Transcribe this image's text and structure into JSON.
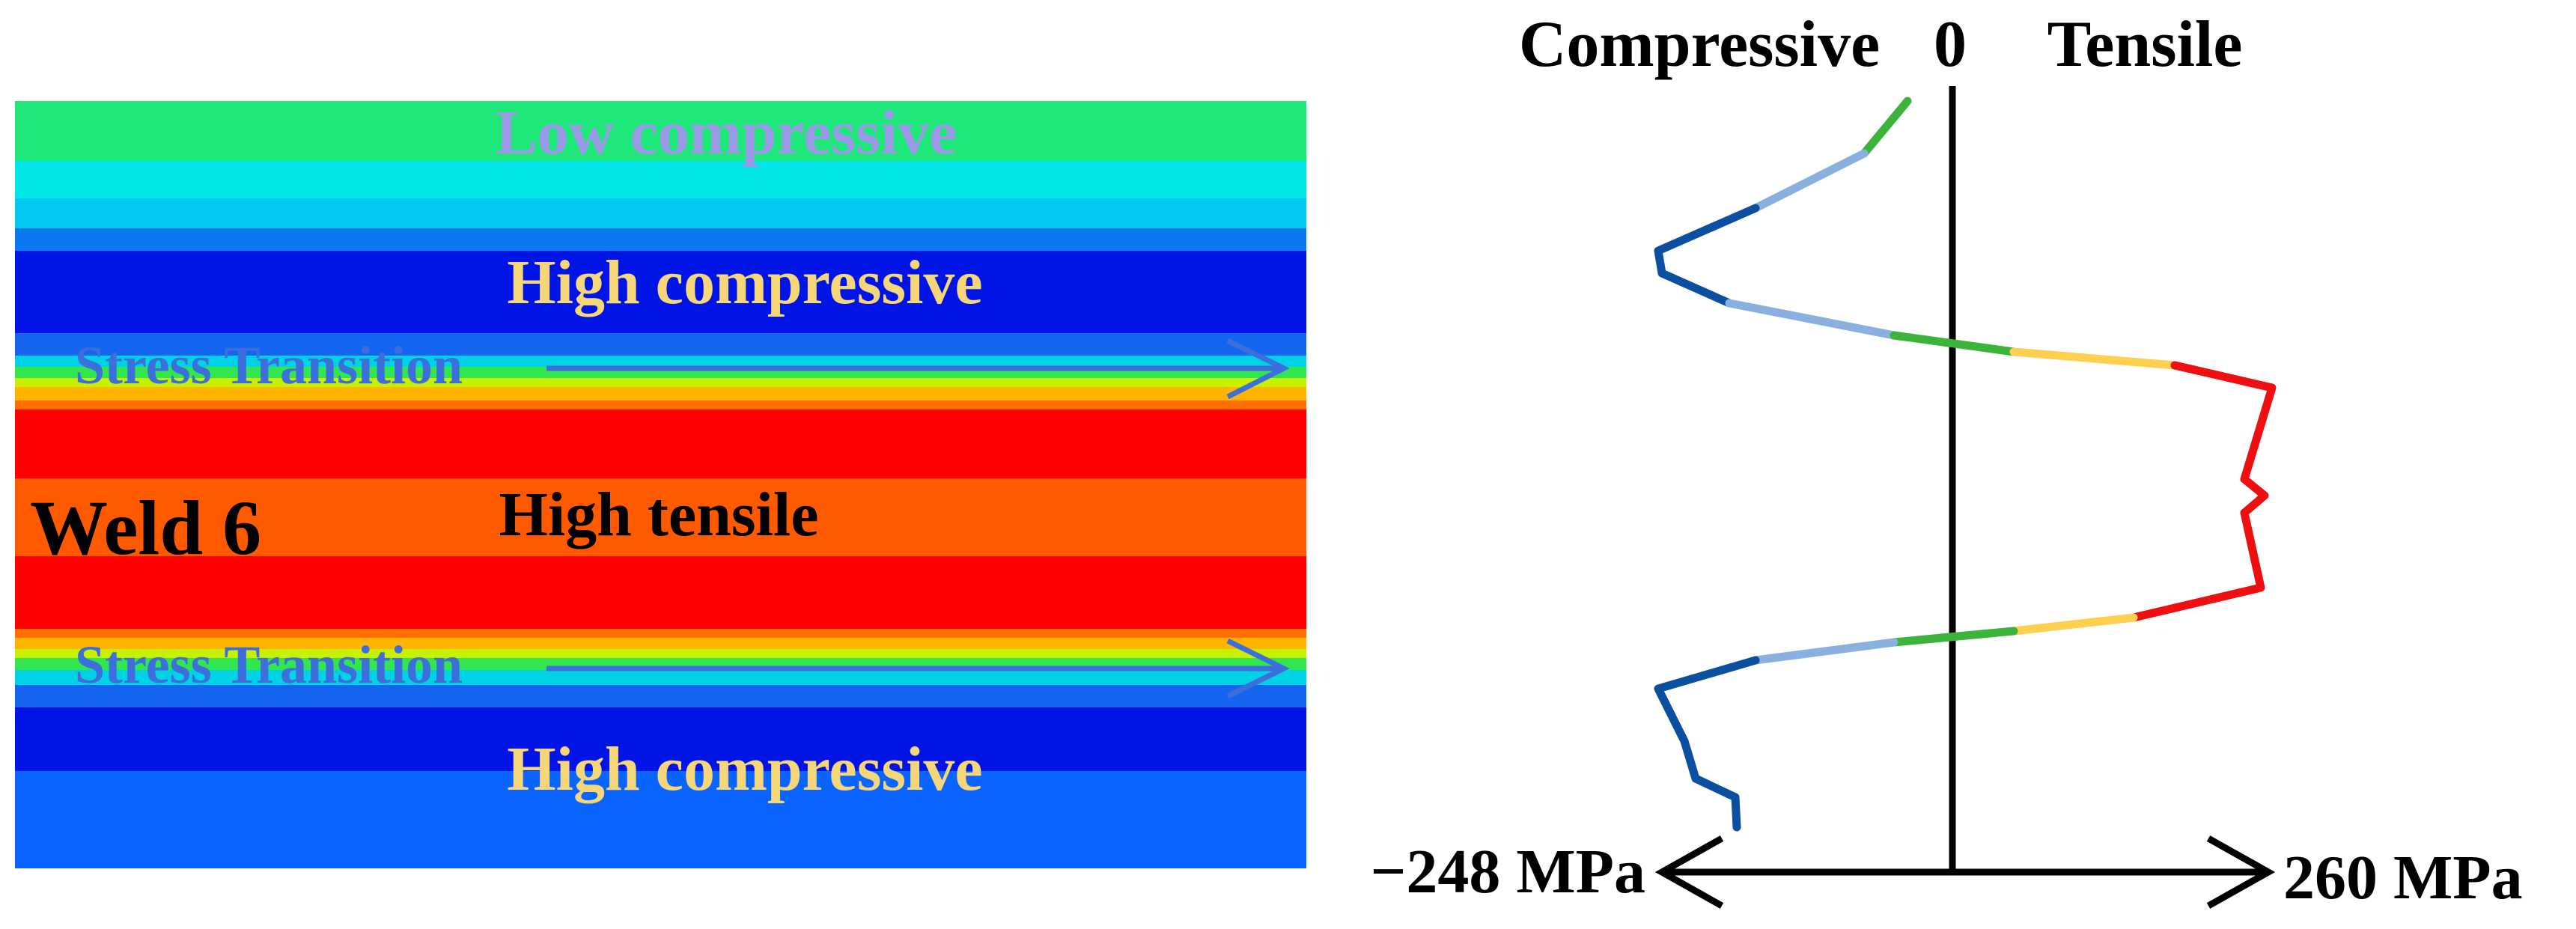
{
  "contour_panel": {
    "weld_label": "Weld 6",
    "low_compressive_label": "Low compressive",
    "high_compressive_top_label": "High compressive",
    "stress_transition_top_label": "Stress Transition",
    "high_tensile_label": "High tensile",
    "stress_transition_bottom_label": "Stress Transition",
    "high_compressive_bottom_label": "High compressive",
    "colors": {
      "green": "#1EE87A",
      "cyan": "#00E6E6",
      "sky": "#00C8F0",
      "light_blue": "#0A78F0",
      "blue": "#0014E6",
      "mid_blue": "#1464F0",
      "bright_blue": "#0A64FF",
      "red": "#FF0000",
      "orange": "#FF5A00",
      "yellow_label": "#F5D77A",
      "low_label": "#9A9AE6",
      "transition_label": "#3C6EDC",
      "arrow": "#3C6EDC"
    }
  },
  "profile_panel": {
    "left_header": "Compressive",
    "zero_label": "0",
    "right_header": "Tensile",
    "min_label": "−248 MPa",
    "max_label": "260 MPa",
    "colors": {
      "dark_blue": "#0A4FA0",
      "light_blue": "#8AB0E0",
      "green": "#3CB43C",
      "yellow": "#FFD050",
      "red": "#EE1010",
      "axis": "#000000"
    }
  }
}
